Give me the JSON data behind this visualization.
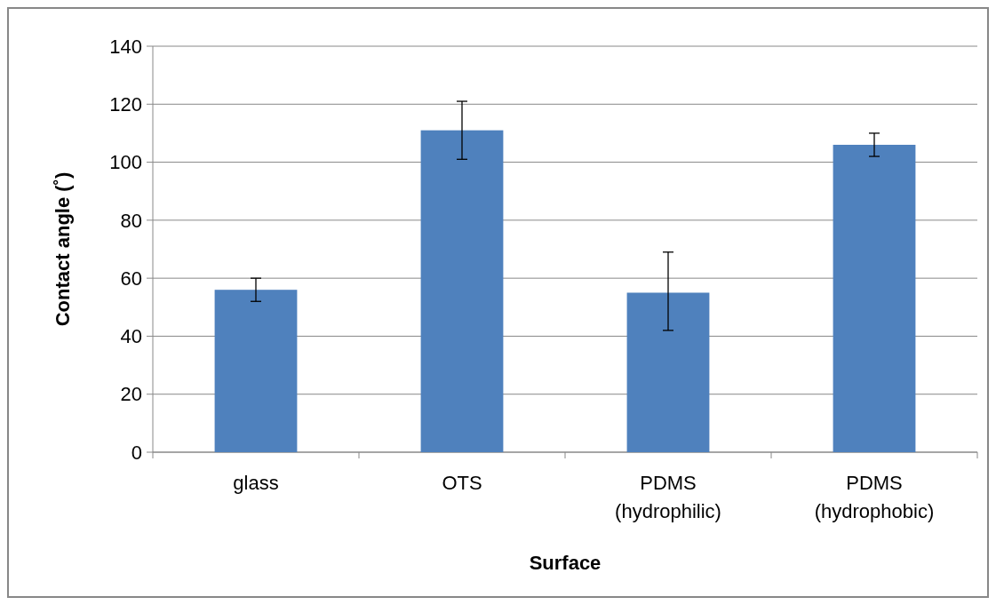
{
  "chart_data": {
    "type": "bar",
    "xlabel": "Surface",
    "ylabel": "Contact angle (˚)",
    "categories": [
      "glass",
      "OTS",
      "PDMS\n(hydrophilic)",
      "PDMS\n(hydrophobic)"
    ],
    "values": [
      56,
      111,
      55,
      106
    ],
    "errors": [
      [
        52,
        60
      ],
      [
        101,
        121
      ],
      [
        42,
        69
      ],
      [
        102,
        110
      ]
    ],
    "color": "#4f81bd",
    "ylim": [
      0,
      140
    ],
    "yticks": [
      0,
      20,
      40,
      60,
      80,
      100,
      120,
      140
    ],
    "grid": "y"
  }
}
